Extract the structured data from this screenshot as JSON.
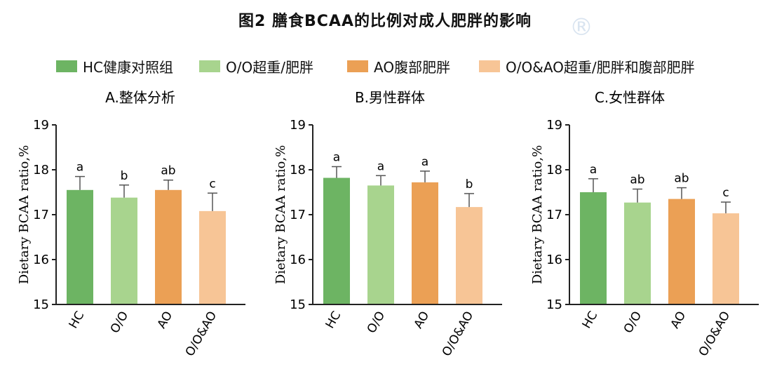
{
  "title": "图2 膳食BCAA的比例对成人肥胖的影响",
  "watermark_symbol": "®",
  "legend": [
    {
      "label": "HC健康对照组",
      "color": "#6db463"
    },
    {
      "label": "O/O超重/肥胖",
      "color": "#a8d48e"
    },
    {
      "label": "AO腹部肥胖",
      "color": "#eba055"
    },
    {
      "label": "O/O&AO超重/肥胖和腹部肥胖",
      "color": "#f7c596"
    }
  ],
  "colors": [
    "#6db463",
    "#a8d48e",
    "#eba055",
    "#f7c596"
  ],
  "chart_data": [
    {
      "type": "bar",
      "title": "A.整体分析",
      "ylabel": "Dietary BCAA ratio,%",
      "ylim": [
        15,
        19
      ],
      "yticks": [
        "15",
        "16",
        "17",
        "18",
        "19"
      ],
      "categories": [
        "HC",
        "O/O",
        "AO",
        "O/O&AO"
      ],
      "values": [
        17.55,
        17.38,
        17.55,
        17.08
      ],
      "errors": [
        0.3,
        0.28,
        0.22,
        0.4
      ],
      "significance": [
        "a",
        "b",
        "ab",
        "c"
      ]
    },
    {
      "type": "bar",
      "title": "B.男性群体",
      "ylabel": "Dietary BCAA ratio,%",
      "ylim": [
        15,
        19
      ],
      "yticks": [
        "15",
        "16",
        "17",
        "18",
        "19"
      ],
      "categories": [
        "HC",
        "O/O",
        "AO",
        "O/O&AO"
      ],
      "values": [
        17.82,
        17.65,
        17.72,
        17.17
      ],
      "errors": [
        0.25,
        0.22,
        0.25,
        0.3
      ],
      "significance": [
        "a",
        "a",
        "a",
        "b"
      ]
    },
    {
      "type": "bar",
      "title": "C.女性群体",
      "ylabel": "Dietary BCAA ratio,%",
      "ylim": [
        15,
        19
      ],
      "yticks": [
        "15",
        "16",
        "17",
        "18",
        "19"
      ],
      "categories": [
        "HC",
        "O/O",
        "AO",
        "O/O&AO"
      ],
      "values": [
        17.5,
        17.27,
        17.35,
        17.03
      ],
      "errors": [
        0.3,
        0.3,
        0.25,
        0.25
      ],
      "significance": [
        "a",
        "ab",
        "ab",
        "c"
      ]
    }
  ]
}
